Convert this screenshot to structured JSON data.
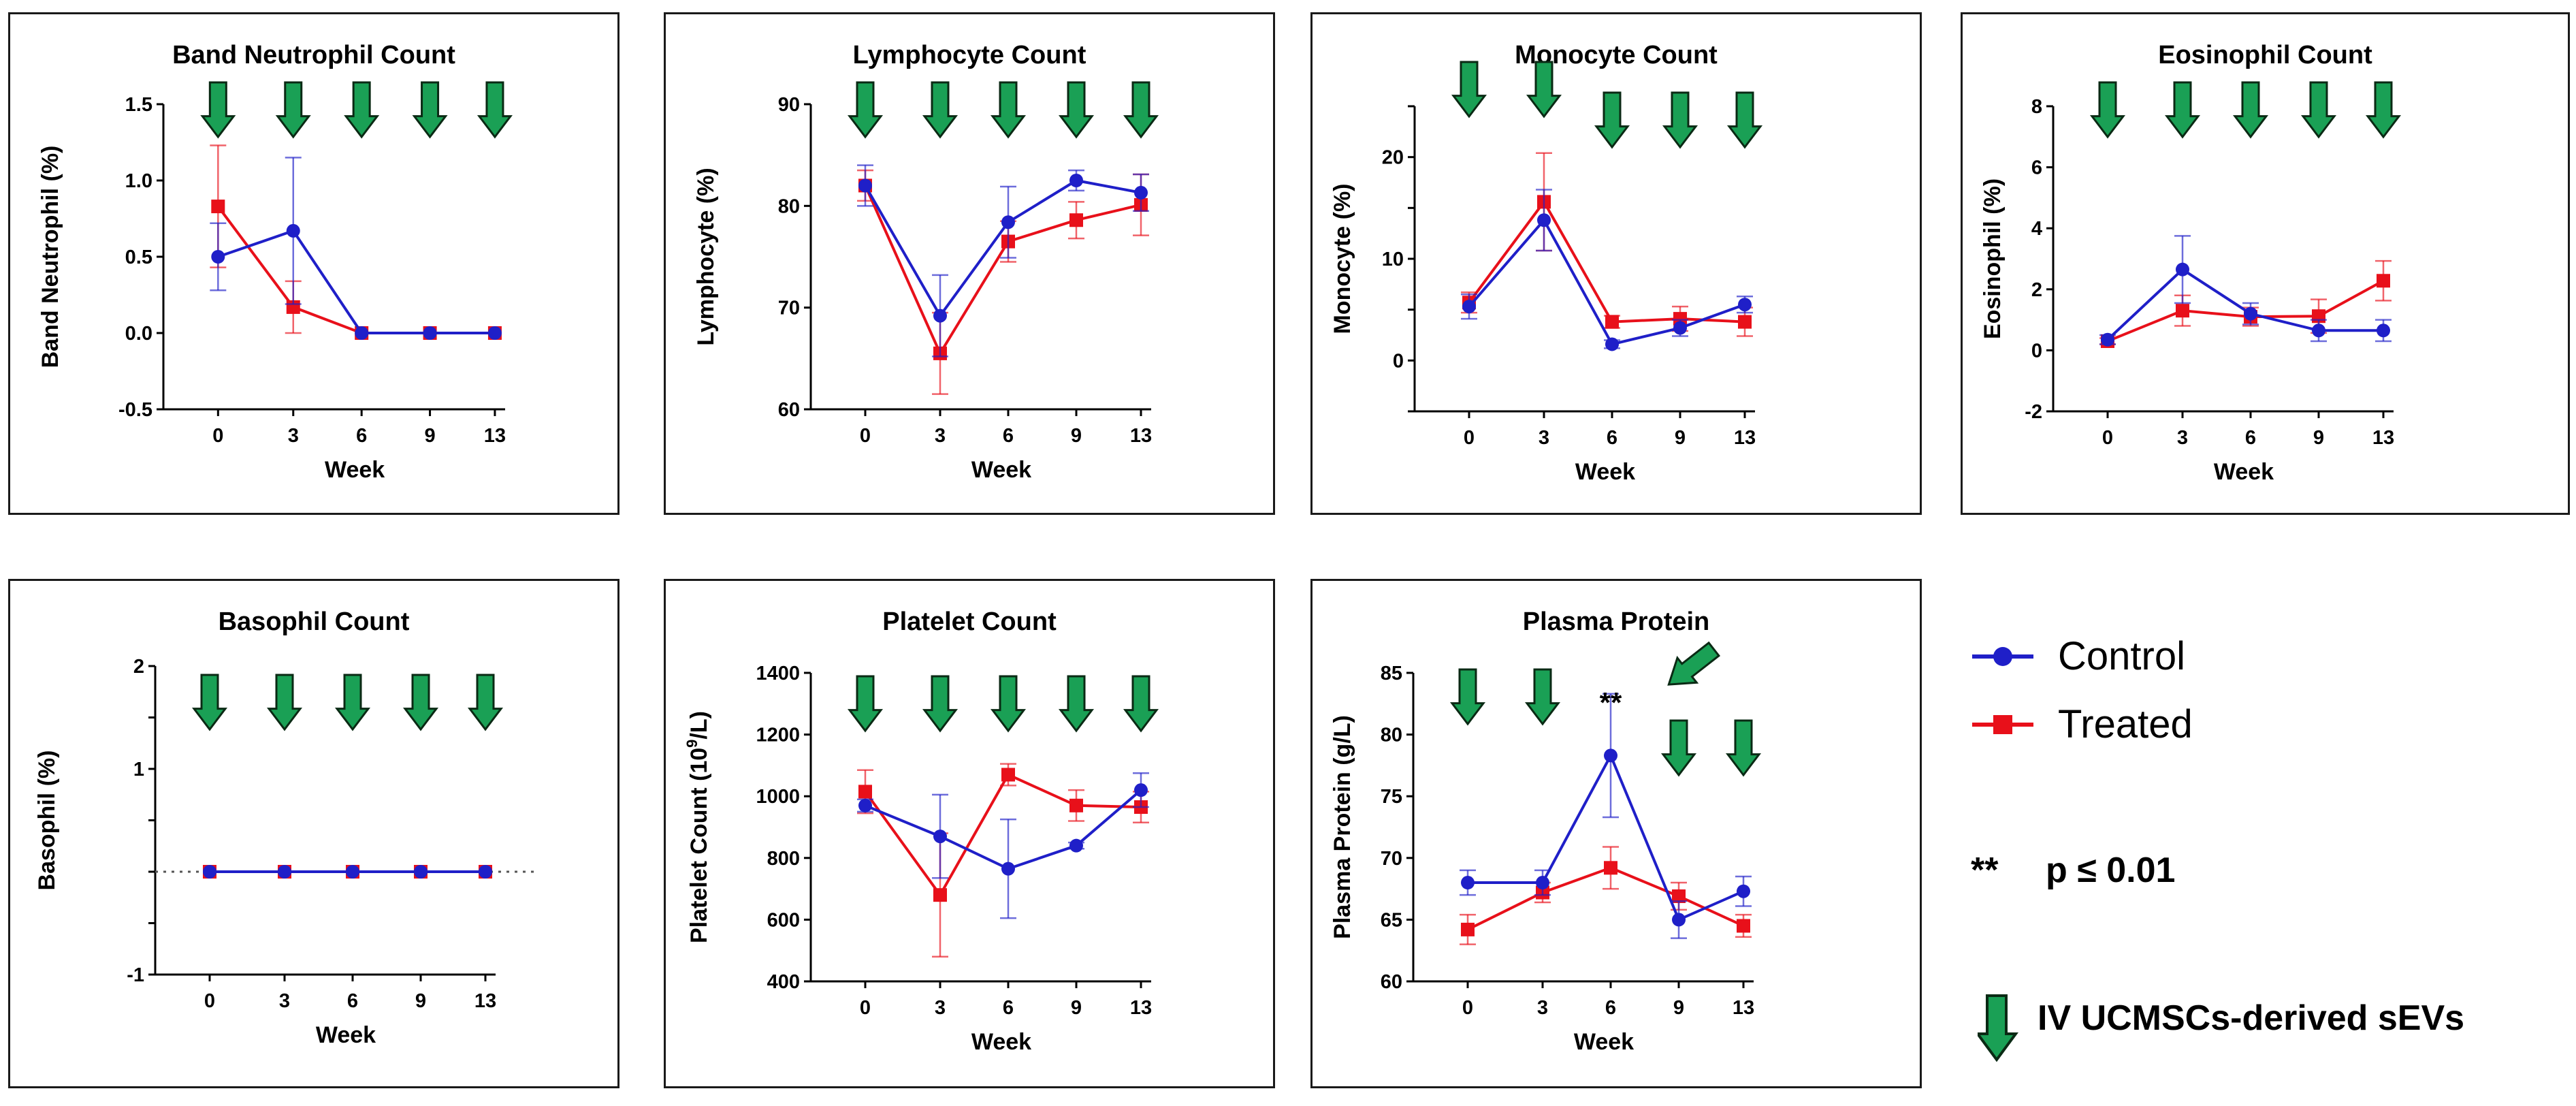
{
  "colors": {
    "control": "#1f1fc8",
    "treated": "#e8101a",
    "arrow_fill": "#1aa055",
    "arrow_stroke": "#0a2a14"
  },
  "legend": {
    "control_label": "Control",
    "treated_label": "Treated",
    "sig_symbol": "**",
    "sig_label": "p ≤ 0.01",
    "arrow_label": "IV UCMSCs-derived sEVs"
  },
  "chart_data": [
    {
      "type": "line",
      "title": "Band Neutrophil Count",
      "xlabel": "Week",
      "ylabel": "Band Neutrophil (%)",
      "x": [
        0,
        3,
        6,
        9,
        13
      ],
      "xticks": [
        "0",
        "3",
        "6",
        "9",
        "13"
      ],
      "ylim": [
        -0.5,
        1.5
      ],
      "yticks": [
        "-0.5",
        "0.0",
        "0.5",
        "1.0",
        "1.5"
      ],
      "series": [
        {
          "name": "Control",
          "values": [
            0.5,
            0.67,
            0,
            0,
            0
          ],
          "err": [
            0.22,
            0.48,
            0,
            0,
            0
          ]
        },
        {
          "name": "Treated",
          "values": [
            0.83,
            0.17,
            0,
            0,
            0
          ],
          "err": [
            0.4,
            0.17,
            0,
            0,
            0
          ]
        }
      ],
      "arrows_at_weeks": [
        0,
        3,
        6,
        9,
        13
      ]
    },
    {
      "type": "line",
      "title": "Lymphocyte Count",
      "xlabel": "Week",
      "ylabel": "Lymphocyte (%)",
      "x": [
        0,
        3,
        6,
        9,
        13
      ],
      "xticks": [
        "0",
        "3",
        "6",
        "9",
        "13"
      ],
      "ylim": [
        60,
        90
      ],
      "yticks": [
        "60",
        "70",
        "80",
        "90"
      ],
      "series": [
        {
          "name": "Control",
          "values": [
            82,
            69.2,
            78.4,
            82.5,
            81.3
          ],
          "err": [
            2,
            4,
            3.5,
            1,
            1.8
          ]
        },
        {
          "name": "Treated",
          "values": [
            82,
            65.5,
            76.5,
            78.6,
            80.1
          ],
          "err": [
            1.5,
            4,
            2,
            1.8,
            3
          ]
        }
      ],
      "arrows_at_weeks": [
        0,
        3,
        6,
        9,
        13
      ]
    },
    {
      "type": "line",
      "title": "Monocyte Count",
      "xlabel": "Week",
      "ylabel": "Monocyte (%)",
      "x": [
        0,
        3,
        6,
        9,
        13
      ],
      "xticks": [
        "0",
        "3",
        "6",
        "9",
        "13"
      ],
      "ylim": [
        -5,
        25
      ],
      "yticks": [
        "0",
        "10",
        "20"
      ],
      "series": [
        {
          "name": "Control",
          "values": [
            5.3,
            13.8,
            1.6,
            3.2,
            5.5
          ],
          "err": [
            1.2,
            3,
            0.4,
            0.8,
            0.8
          ]
        },
        {
          "name": "Treated",
          "values": [
            5.7,
            15.6,
            3.8,
            4.1,
            3.8
          ],
          "err": [
            1,
            4.8,
            0.6,
            1.2,
            1.4
          ]
        }
      ],
      "arrows_at_weeks": [
        0,
        3,
        6,
        9,
        13
      ]
    },
    {
      "type": "line",
      "title": "Eosinophil Count",
      "xlabel": "Week",
      "ylabel": "Eosinophil (%)",
      "x": [
        0,
        3,
        6,
        9,
        13
      ],
      "xticks": [
        "0",
        "3",
        "6",
        "9",
        "13"
      ],
      "ylim": [
        -2,
        8
      ],
      "yticks": [
        "-2",
        "0",
        "2",
        "4",
        "6",
        "8"
      ],
      "series": [
        {
          "name": "Control",
          "values": [
            0.35,
            2.65,
            1.2,
            0.65,
            0.65
          ],
          "err": [
            0.15,
            1.1,
            0.35,
            0.35,
            0.35
          ]
        },
        {
          "name": "Treated",
          "values": [
            0.3,
            1.3,
            1.1,
            1.12,
            2.28
          ],
          "err": [
            0.1,
            0.5,
            0.3,
            0.55,
            0.65
          ]
        }
      ],
      "arrows_at_weeks": [
        0,
        3,
        6,
        9,
        13
      ]
    },
    {
      "type": "line",
      "title": "Basophil Count",
      "xlabel": "Week",
      "ylabel": "Basophil (%)",
      "x": [
        0,
        3,
        6,
        9,
        13
      ],
      "xticks": [
        "0",
        "3",
        "6",
        "9",
        "13"
      ],
      "ylim": [
        -1,
        2
      ],
      "yticks": [
        "-1",
        "1",
        "2"
      ],
      "series": [
        {
          "name": "Control",
          "values": [
            0,
            0,
            0,
            0,
            0
          ],
          "err": [
            0,
            0,
            0,
            0,
            0
          ]
        },
        {
          "name": "Treated",
          "values": [
            0,
            0,
            0,
            0,
            0
          ],
          "err": [
            0,
            0,
            0,
            0,
            0
          ]
        }
      ],
      "zero_line": "dotted",
      "arrows_at_weeks": [
        0,
        3,
        6,
        9,
        13
      ]
    },
    {
      "type": "line",
      "title": "Platelet Count",
      "xlabel": "Week",
      "ylabel_main": "Platelet Count (10",
      "ylabel_sup": "9",
      "ylabel_tail": "/L)",
      "x": [
        0,
        3,
        6,
        9,
        13
      ],
      "xticks": [
        "0",
        "3",
        "6",
        "9",
        "13"
      ],
      "ylim": [
        400,
        1400
      ],
      "yticks": [
        "400",
        "600",
        "800",
        "1000",
        "1200",
        "1400"
      ],
      "series": [
        {
          "name": "Control",
          "values": [
            970,
            870,
            765,
            840,
            1020
          ],
          "err": [
            20,
            135,
            160,
            10,
            55
          ]
        },
        {
          "name": "Treated",
          "values": [
            1015,
            680,
            1070,
            970,
            965
          ],
          "err": [
            70,
            200,
            35,
            50,
            50
          ]
        }
      ],
      "arrows_at_weeks": [
        0,
        3,
        6,
        9,
        13
      ]
    },
    {
      "type": "line",
      "title": "Plasma Protein",
      "xlabel": "Week",
      "ylabel": "Plasma Protein (g/L)",
      "x": [
        0,
        3,
        6,
        9,
        13
      ],
      "xticks": [
        "0",
        "3",
        "6",
        "9",
        "13"
      ],
      "ylim": [
        60,
        85
      ],
      "yticks": [
        "60",
        "65",
        "70",
        "75",
        "80",
        "85"
      ],
      "series": [
        {
          "name": "Control",
          "values": [
            68,
            68,
            78.3,
            65,
            67.3
          ],
          "err": [
            1,
            1,
            5,
            1.5,
            1.2
          ]
        },
        {
          "name": "Treated",
          "values": [
            64.2,
            67.2,
            69.2,
            66.9,
            64.5
          ],
          "err": [
            1.2,
            0.8,
            1.7,
            1.1,
            0.9
          ]
        }
      ],
      "significance": {
        "week": 6,
        "label": "**"
      },
      "arrows_at_weeks": [
        0,
        3,
        9,
        13
      ]
    }
  ]
}
